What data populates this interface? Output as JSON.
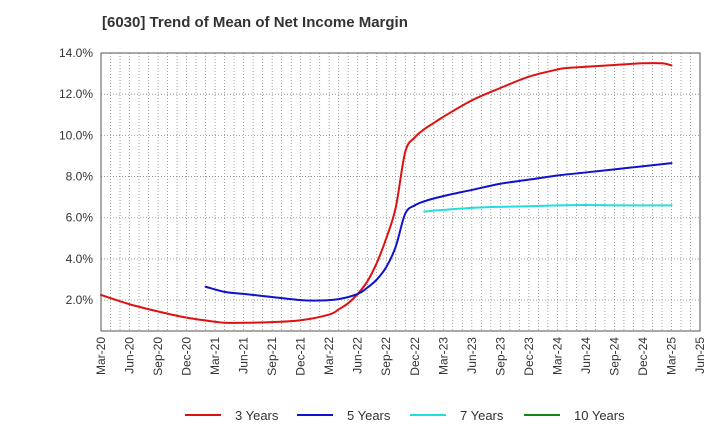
{
  "chart_data": {
    "type": "line",
    "title": "[6030]  Trend of Mean of Net Income Margin",
    "xlabel": "",
    "ylabel": "",
    "x_ticks": [
      "Mar-20",
      "Jun-20",
      "Sep-20",
      "Dec-20",
      "Mar-21",
      "Jun-21",
      "Sep-21",
      "Dec-21",
      "Mar-22",
      "Jun-22",
      "Sep-22",
      "Dec-22",
      "Mar-23",
      "Jun-23",
      "Sep-23",
      "Dec-23",
      "Mar-24",
      "Jun-24",
      "Sep-24",
      "Dec-24",
      "Mar-25",
      "Jun-25"
    ],
    "y_ticks": [
      "2.0%",
      "4.0%",
      "6.0%",
      "8.0%",
      "10.0%",
      "12.0%",
      "14.0%"
    ],
    "ylim": [
      0.5,
      14.0
    ],
    "grid": true,
    "legend_placement": "bottom",
    "series": [
      {
        "name": "3 Years",
        "color": "#dd1111",
        "x": [
          "Mar-20",
          "Jun-20",
          "Sep-20",
          "Dec-20",
          "Mar-21",
          "Apr-21",
          "Jun-21",
          "Sep-21",
          "Dec-21",
          "Mar-22",
          "Apr-22",
          "May-22",
          "Jun-22",
          "Jul-22",
          "Aug-22",
          "Sep-22",
          "Oct-22",
          "Nov-22",
          "Dec-22",
          "Jan-23",
          "Feb-23",
          "Mar-23",
          "Jun-23",
          "Sep-23",
          "Dec-23",
          "Mar-24",
          "Apr-24",
          "Jun-24",
          "Sep-24",
          "Dec-24",
          "Feb-25",
          "Mar-25"
        ],
        "values": [
          2.25,
          1.8,
          1.45,
          1.15,
          0.95,
          0.9,
          0.9,
          0.93,
          1.02,
          1.3,
          1.55,
          1.85,
          2.3,
          2.9,
          3.8,
          5.0,
          6.5,
          9.2,
          9.9,
          10.3,
          10.6,
          10.9,
          11.7,
          12.3,
          12.85,
          13.2,
          13.27,
          13.33,
          13.42,
          13.5,
          13.5,
          13.4
        ]
      },
      {
        "name": "5 Years",
        "color": "#1111cc",
        "x": [
          "Feb-21",
          "Apr-21",
          "Jun-21",
          "Sep-21",
          "Dec-21",
          "Feb-22",
          "Apr-22",
          "Jun-22",
          "Jul-22",
          "Aug-22",
          "Sep-22",
          "Oct-22",
          "Nov-22",
          "Dec-22",
          "Jan-23",
          "Mar-23",
          "Jun-23",
          "Sep-23",
          "Dec-23",
          "Mar-24",
          "Jun-24",
          "Sep-24",
          "Dec-24",
          "Mar-25"
        ],
        "values": [
          2.65,
          2.4,
          2.3,
          2.15,
          2.0,
          1.98,
          2.05,
          2.3,
          2.6,
          3.0,
          3.6,
          4.6,
          6.2,
          6.6,
          6.8,
          7.05,
          7.35,
          7.65,
          7.85,
          8.05,
          8.2,
          8.35,
          8.5,
          8.65
        ]
      },
      {
        "name": "7 Years",
        "color": "#22dddd",
        "x": [
          "Jan-23",
          "Mar-23",
          "Jun-23",
          "Sep-23",
          "Dec-23",
          "Mar-24",
          "Jun-24",
          "Sep-24",
          "Dec-24",
          "Mar-25"
        ],
        "values": [
          6.3,
          6.38,
          6.48,
          6.53,
          6.56,
          6.6,
          6.62,
          6.6,
          6.6,
          6.6
        ]
      },
      {
        "name": "10 Years",
        "color": "#118811",
        "x": [],
        "values": []
      }
    ]
  }
}
